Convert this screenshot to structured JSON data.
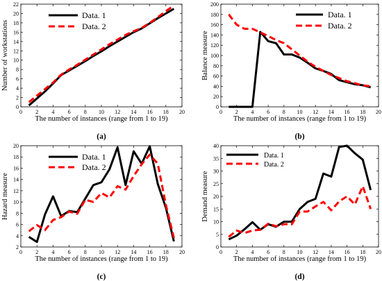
{
  "chart_data": [
    {
      "type": "line",
      "panel_label": "(a)",
      "xlabel": "The number of instances (range from 1 to 19)",
      "ylabel": "Number of workstations",
      "xlim": [
        0,
        20
      ],
      "ylim": [
        0,
        22
      ],
      "xticks": [
        0,
        2,
        4,
        6,
        8,
        10,
        12,
        14,
        16,
        18,
        20
      ],
      "yticks": [
        0,
        2,
        4,
        6,
        8,
        10,
        12,
        14,
        16,
        18,
        20,
        22
      ],
      "legend_position": "top-left",
      "x": [
        1,
        2,
        3,
        4,
        5,
        6,
        7,
        8,
        9,
        10,
        11,
        12,
        13,
        14,
        15,
        16,
        17,
        18,
        19
      ],
      "series": [
        {
          "name": "Data. 1",
          "color": "#000000",
          "dashed": false,
          "values": [
            0.3,
            1.8,
            3.3,
            5.0,
            6.8,
            7.8,
            8.8,
            9.8,
            10.9,
            11.9,
            13.0,
            14.0,
            15.0,
            16.0,
            16.8,
            17.9,
            19.0,
            20.0,
            21.0
          ]
        },
        {
          "name": "Data. 2",
          "color": "#ff0000",
          "dashed": true,
          "values": [
            1.0,
            2.4,
            3.8,
            5.2,
            6.9,
            8.0,
            9.0,
            10.1,
            11.2,
            12.3,
            13.4,
            14.4,
            15.4,
            16.2,
            16.9,
            18.0,
            19.2,
            20.5,
            21.7
          ]
        }
      ]
    },
    {
      "type": "line",
      "panel_label": "(b)",
      "xlabel": "The number of instances (range from 1 to 19)",
      "ylabel": "Balance measure",
      "xlim": [
        0,
        20
      ],
      "ylim": [
        0,
        200
      ],
      "xticks": [
        0,
        2,
        4,
        6,
        8,
        10,
        12,
        14,
        16,
        18,
        20
      ],
      "yticks": [
        0,
        20,
        40,
        60,
        80,
        100,
        120,
        140,
        160,
        180,
        200
      ],
      "legend_position": "top-right",
      "x": [
        1,
        2,
        3,
        4,
        5,
        6,
        7,
        8,
        9,
        10,
        11,
        12,
        13,
        14,
        15,
        16,
        17,
        18,
        19
      ],
      "series": [
        {
          "name": "Data. 1",
          "color": "#000000",
          "dashed": false,
          "values": [
            0,
            0,
            0,
            0,
            146,
            128,
            124,
            102,
            102,
            96,
            86,
            75,
            70,
            64,
            52,
            48,
            44,
            42,
            38
          ]
        },
        {
          "name": "Data. 2",
          "color": "#ff0000",
          "dashed": true,
          "values": [
            180,
            160,
            152,
            152,
            145,
            138,
            130,
            124,
            112,
            100,
            88,
            78,
            70,
            62,
            56,
            50,
            46,
            42,
            40
          ]
        }
      ]
    },
    {
      "type": "line",
      "panel_label": "(c)",
      "xlabel": "The number of instances (range from 1 to 19)",
      "ylabel": "Hazard measure",
      "xlim": [
        0,
        20
      ],
      "ylim": [
        2,
        20
      ],
      "xticks": [
        0,
        2,
        4,
        6,
        8,
        10,
        12,
        14,
        16,
        18,
        20
      ],
      "yticks": [
        2,
        4,
        6,
        8,
        10,
        12,
        14,
        16,
        18,
        20
      ],
      "legend_position": "top-left",
      "x": [
        1,
        2,
        3,
        4,
        5,
        6,
        7,
        8,
        9,
        10,
        11,
        12,
        13,
        14,
        15,
        16,
        17,
        18,
        19
      ],
      "series": [
        {
          "name": "Data. 1",
          "color": "#000000",
          "dashed": false,
          "values": [
            3.8,
            2.9,
            7.8,
            11.0,
            7.5,
            8.4,
            8.2,
            10.6,
            13.0,
            13.5,
            15.8,
            19.7,
            13.0,
            19.0,
            16.8,
            19.9,
            13.2,
            9.0,
            3.0
          ]
        },
        {
          "name": "Data. 2",
          "color": "#ff0000",
          "dashed": true,
          "values": [
            4.8,
            5.9,
            5.0,
            6.8,
            7.3,
            8.3,
            7.9,
            10.4,
            10.0,
            11.6,
            10.8,
            12.8,
            12.2,
            14.6,
            16.7,
            18.4,
            16.8,
            9.5,
            3.6
          ]
        }
      ]
    },
    {
      "type": "line",
      "panel_label": "(d)",
      "xlabel": "The number of instances (range from 1 to 19)",
      "ylabel": "Demand measure",
      "xlim": [
        0,
        20
      ],
      "ylim": [
        0,
        40
      ],
      "xticks": [
        0,
        2,
        4,
        6,
        8,
        10,
        12,
        14,
        16,
        18,
        20
      ],
      "yticks": [
        0,
        5,
        10,
        15,
        20,
        25,
        30,
        35,
        40
      ],
      "legend_position": "top-left",
      "x": [
        1,
        2,
        3,
        4,
        5,
        6,
        7,
        8,
        9,
        10,
        11,
        12,
        13,
        14,
        15,
        16,
        17,
        18,
        19
      ],
      "series": [
        {
          "name": "Data. 1",
          "color": "#000000",
          "dashed": false,
          "values": [
            3.0,
            4.5,
            7.0,
            9.8,
            6.8,
            9.0,
            8.0,
            10.0,
            10.0,
            15.0,
            17.8,
            19.0,
            29.0,
            27.8,
            39.5,
            40.0,
            37.0,
            34.5,
            22.5
          ]
        },
        {
          "name": "Data. 2",
          "color": "#ff0000",
          "dashed": true,
          "values": [
            4.0,
            6.5,
            5.5,
            6.5,
            6.8,
            9.2,
            8.2,
            9.0,
            9.0,
            14.0,
            14.0,
            16.0,
            17.8,
            14.5,
            18.0,
            20.0,
            16.8,
            24.0,
            15.0
          ]
        }
      ]
    }
  ]
}
